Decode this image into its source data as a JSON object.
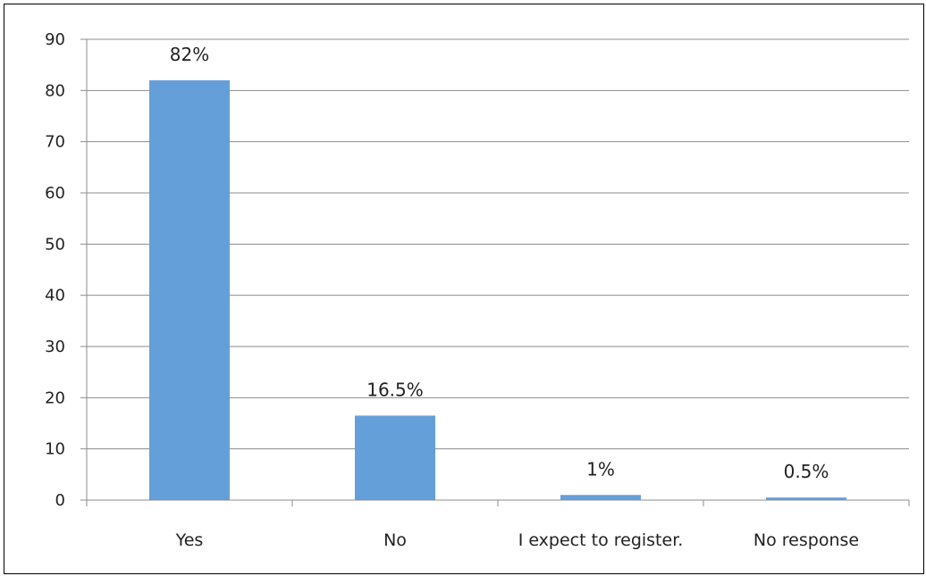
{
  "chart_data": {
    "type": "bar",
    "title": "",
    "xlabel": "",
    "ylabel": "",
    "categories": [
      "Yes",
      "No",
      "I expect to register.",
      "No response"
    ],
    "values": [
      82,
      16.5,
      1,
      0.5
    ],
    "data_labels": [
      "82%",
      "16.5%",
      "1%",
      "0.5%"
    ],
    "ylim": [
      0,
      90
    ],
    "y_ticks": [
      0,
      10,
      20,
      30,
      40,
      50,
      60,
      70,
      80,
      90
    ],
    "grid": true,
    "legend": "none",
    "bar_color": "#659FD9",
    "grid_color": "#8C8C8C",
    "axis_color": "#8C8C8C"
  }
}
